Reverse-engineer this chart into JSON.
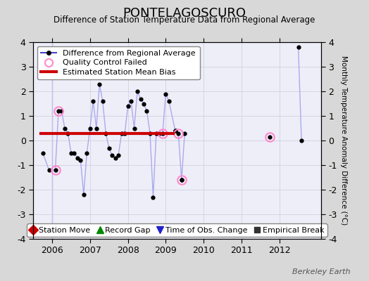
{
  "title": "PONTELAGOSCURO",
  "subtitle": "Difference of Station Temperature Data from Regional Average",
  "ylabel": "Monthly Temperature Anomaly Difference (°C)",
  "xlabel_credit": "Berkeley Earth",
  "xlim": [
    2005.5,
    2013.1
  ],
  "ylim": [
    -4,
    4
  ],
  "yticks": [
    -4,
    -3,
    -2,
    -1,
    0,
    1,
    2,
    3,
    4
  ],
  "xticks": [
    2006,
    2007,
    2008,
    2009,
    2010,
    2011,
    2012
  ],
  "bias_line_x": [
    2005.7,
    2009.2
  ],
  "bias_line_y": [
    0.3,
    0.3
  ],
  "line_color": "#4444cc",
  "line_color_light": "#aaaaee",
  "dot_color": "#000000",
  "bias_color": "#cc0000",
  "qc_color": "#ff88cc",
  "bg_color": "#d8d8d8",
  "plot_bg_color": "#eeeef8",
  "legend_items": [
    {
      "label": "Difference from Regional Average"
    },
    {
      "label": "Quality Control Failed"
    },
    {
      "label": "Estimated Station Mean Bias"
    }
  ],
  "bottom_legend": [
    {
      "label": "Station Move",
      "color": "#cc0000",
      "marker": "D"
    },
    {
      "label": "Record Gap",
      "color": "#008800",
      "marker": "^"
    },
    {
      "label": "Time of Obs. Change",
      "color": "#2222cc",
      "marker": "v"
    },
    {
      "label": "Empirical Break",
      "color": "#333333",
      "marker": "s"
    }
  ],
  "time_series": {
    "dates": [
      2005.75,
      2005.917,
      2006.083,
      2006.167,
      2006.25,
      2006.333,
      2006.417,
      2006.5,
      2006.583,
      2006.667,
      2006.75,
      2006.833,
      2006.917,
      2007.0,
      2007.083,
      2007.167,
      2007.25,
      2007.333,
      2007.417,
      2007.5,
      2007.583,
      2007.667,
      2007.75,
      2007.833,
      2007.917,
      2008.0,
      2008.083,
      2008.167,
      2008.25,
      2008.333,
      2008.417,
      2008.5,
      2008.583,
      2008.667,
      2008.75,
      2008.833,
      2008.917,
      2009.0,
      2009.083,
      2009.25
    ],
    "values": [
      -0.5,
      -1.2,
      -1.2,
      1.2,
      1.2,
      0.5,
      0.3,
      -0.5,
      -0.5,
      -0.7,
      -0.8,
      -2.2,
      -0.5,
      0.5,
      1.6,
      0.5,
      2.3,
      1.6,
      0.3,
      -0.3,
      -0.6,
      -0.7,
      -0.6,
      0.3,
      0.3,
      1.4,
      1.6,
      0.5,
      2.0,
      1.7,
      1.5,
      1.2,
      0.3,
      -2.3,
      0.3,
      0.3,
      0.3,
      1.9,
      1.6,
      0.4
    ]
  },
  "segment2_dates": [
    2009.25,
    2009.333,
    2009.417
  ],
  "segment2_values": [
    0.4,
    0.3,
    -1.6
  ],
  "segment3_dates": [
    2009.417,
    2009.5
  ],
  "segment3_values": [
    -1.6,
    0.3
  ],
  "isolated_dates": [
    2011.75,
    2012.5,
    2012.583
  ],
  "isolated_values": [
    0.15,
    3.8,
    0.0
  ],
  "qc_failed_dates": [
    2006.083,
    2006.167,
    2008.917,
    2009.333,
    2009.417,
    2011.75
  ],
  "qc_failed_values": [
    -1.2,
    1.2,
    0.3,
    0.3,
    -1.6,
    0.15
  ],
  "vertical_line_x": 2005.99,
  "vertical_line_color": "#aaaaee"
}
